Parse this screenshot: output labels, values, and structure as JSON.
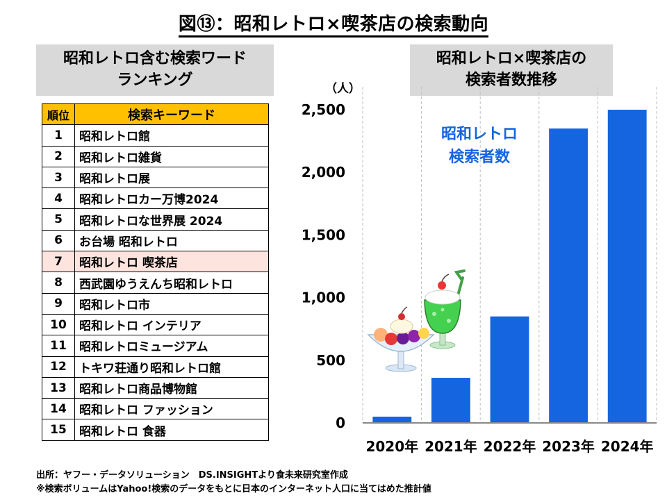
{
  "title": "図⑬：昭和レトロ×喫茶店の検索動向",
  "ranking": {
    "header_line1": "昭和レトロ含む検索ワード",
    "header_line2": "ランキング",
    "col_rank": "順位",
    "col_keyword": "検索キーワード",
    "highlight_color": "#fde4de",
    "header_color": "#ffc000",
    "rows": [
      {
        "rank": "1",
        "keyword": "昭和レトロ館"
      },
      {
        "rank": "2",
        "keyword": "昭和レトロ雑貨"
      },
      {
        "rank": "3",
        "keyword": "昭和レトロ展"
      },
      {
        "rank": "4",
        "keyword": "昭和レトロカー万博2024"
      },
      {
        "rank": "5",
        "keyword": "昭和レトロな世界展 2024"
      },
      {
        "rank": "6",
        "keyword": "お台場 昭和レトロ"
      },
      {
        "rank": "7",
        "keyword": "昭和レトロ 喫茶店",
        "highlight": true
      },
      {
        "rank": "8",
        "keyword": "西武園ゆうえんち昭和レトロ"
      },
      {
        "rank": "9",
        "keyword": "昭和レトロ市"
      },
      {
        "rank": "10",
        "keyword": "昭和レトロ インテリア"
      },
      {
        "rank": "11",
        "keyword": "昭和レトロミュージアム"
      },
      {
        "rank": "12",
        "keyword": "トキワ荘通り昭和レトロ館"
      },
      {
        "rank": "13",
        "keyword": "昭和レトロ商品博物館"
      },
      {
        "rank": "14",
        "keyword": "昭和レトロ ファッション"
      },
      {
        "rank": "15",
        "keyword": "昭和レトロ 食器"
      }
    ]
  },
  "chart_header": {
    "line1": "昭和レトロ×喫茶店の",
    "line2": "検索者数推移"
  },
  "chart_data": {
    "type": "bar",
    "ylabel": "（人）",
    "categories": [
      "2020年",
      "2021年",
      "2022年",
      "2023年",
      "2024年"
    ],
    "series": [
      {
        "name_line1": "昭和レトロ",
        "name_line2": "検索者数",
        "values": [
          50,
          360,
          850,
          2350,
          2500
        ]
      }
    ],
    "ylim": [
      0,
      2500
    ],
    "yticks": [
      0,
      500,
      1000,
      1500,
      2000,
      2500
    ],
    "ytick_labels": [
      "0",
      "500",
      "1,000",
      "1,500",
      "2,000",
      "2,500"
    ],
    "bar_color": "#1565e0",
    "grid": "vertical dashed",
    "legend": "inside top-left",
    "decorations": [
      "parfait-icon",
      "cream-soda-icon"
    ]
  },
  "footer": {
    "line1": "出所：ヤフー・データソリューション　DS.INSIGHTより食未来研究室作成",
    "line2": "※検索ボリュームはYahoo!検索のデータをもとに日本のインターネット人口に当てはめた推計値"
  }
}
